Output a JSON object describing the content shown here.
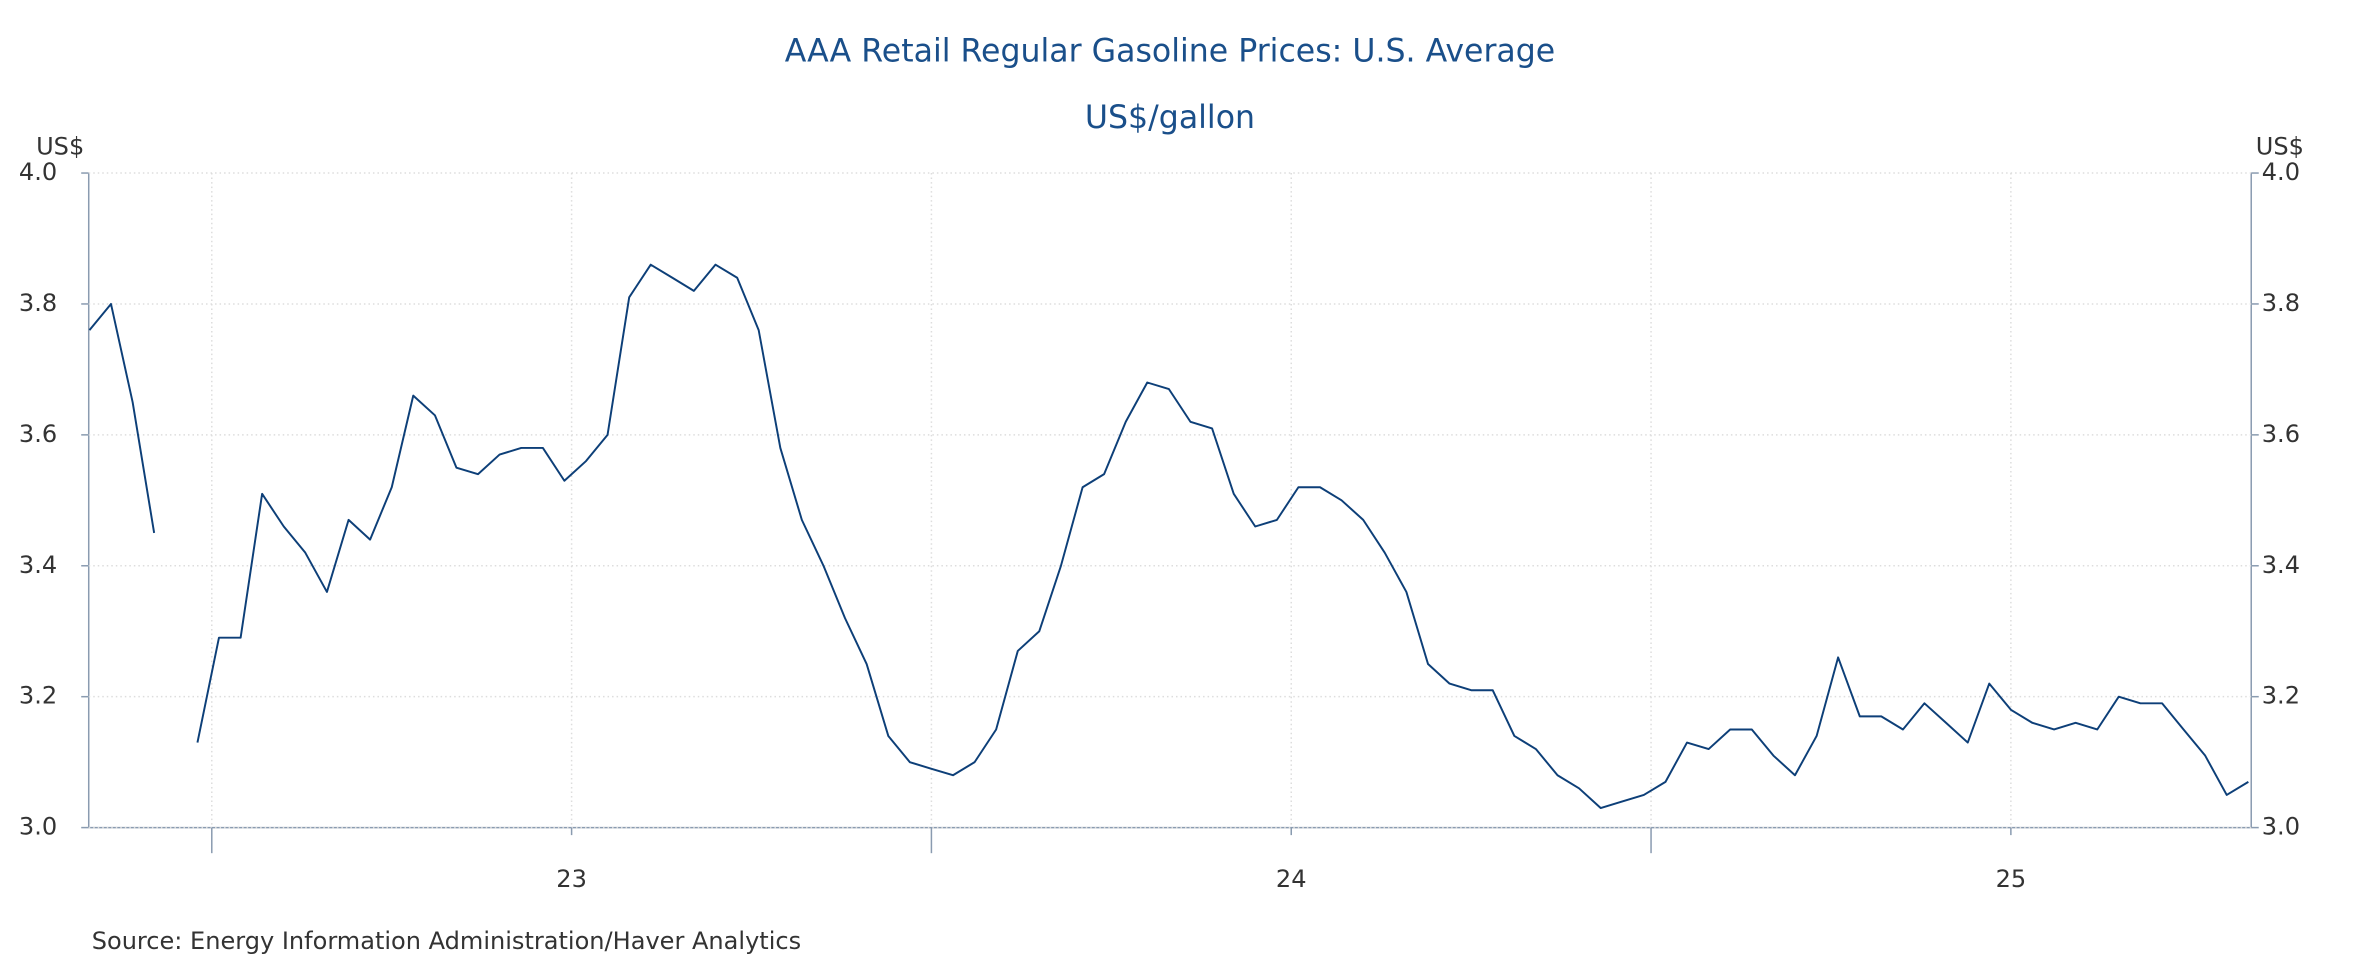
{
  "chart_data": {
    "type": "line",
    "title": "AAA Retail Regular Gasoline Prices: U.S. Average",
    "subtitle": "US$/gallon",
    "ylabel": "US$",
    "y2label": "US$",
    "source": "Source:  Energy Information Administration/Haver Analytics",
    "xlim": [
      2022.829,
      2025.834
    ],
    "xticks": [
      {
        "value": 2023.5,
        "label": "23"
      },
      {
        "value": 2024.5,
        "label": "24"
      },
      {
        "value": 2025.5,
        "label": "25"
      }
    ],
    "xmajor": [
      2023,
      2024,
      2025
    ],
    "ylim": [
      3.0,
      4.0
    ],
    "yticks": [
      {
        "value": 3.0,
        "label": "3.0"
      },
      3.2,
      3.4,
      3.6,
      3.8,
      {
        "value": 4.0,
        "label": "4.0"
      }
    ],
    "y2lim": [
      3.0,
      4.0
    ],
    "y2ticks": [
      {
        "value": 3.0,
        "label": "3.0"
      },
      3.2,
      3.4,
      3.6,
      3.8,
      {
        "value": 4.0,
        "label": "4.0"
      }
    ],
    "grid": true,
    "x": [
      2022.83,
      2022.86,
      2022.89,
      2022.92,
      2022.95,
      2022.98,
      2023.01,
      2023.04,
      2023.07,
      2023.1,
      2023.13,
      2023.16,
      2023.19,
      2023.22,
      2023.25,
      2023.28,
      2023.31,
      2023.34,
      2023.37,
      2023.4,
      2023.43,
      2023.46,
      2023.49,
      2023.52,
      2023.55,
      2023.58,
      2023.61,
      2023.64,
      2023.67,
      2023.7,
      2023.73,
      2023.76,
      2023.79,
      2023.82,
      2023.85,
      2023.88,
      2023.91,
      2023.94,
      2023.97,
      2024.0,
      2024.03,
      2024.06,
      2024.09,
      2024.12,
      2024.15,
      2024.18,
      2024.21,
      2024.24,
      2024.27,
      2024.3,
      2024.33,
      2024.36,
      2024.39,
      2024.42,
      2024.45,
      2024.48,
      2024.51,
      2024.54,
      2024.57,
      2024.6,
      2024.63,
      2024.66,
      2024.69,
      2024.72,
      2024.75,
      2024.78,
      2024.81,
      2024.84,
      2024.87,
      2024.9,
      2024.93,
      2024.96,
      2024.99,
      2025.02,
      2025.05,
      2025.08,
      2025.11,
      2025.14,
      2025.17,
      2025.2,
      2025.23,
      2025.26,
      2025.29,
      2025.32,
      2025.35,
      2025.38,
      2025.41,
      2025.44,
      2025.47,
      2025.5,
      2025.53,
      2025.56,
      2025.59,
      2025.62,
      2025.65,
      2025.68,
      2025.71,
      2025.74,
      2025.77,
      2025.8,
      2025.83
    ],
    "series": [
      {
        "color": "#0d3f78",
        "values": [
          3.76,
          3.8,
          3.65,
          3.45,
          null,
          3.13,
          3.29,
          3.29,
          3.51,
          3.46,
          3.42,
          3.36,
          3.47,
          3.44,
          3.52,
          3.66,
          3.63,
          3.55,
          3.54,
          3.57,
          3.58,
          3.58,
          3.53,
          3.56,
          3.6,
          3.81,
          3.86,
          3.84,
          3.82,
          3.86,
          3.84,
          3.76,
          3.58,
          3.47,
          3.4,
          3.32,
          3.25,
          3.14,
          3.1,
          3.09,
          3.08,
          3.1,
          3.15,
          3.27,
          3.3,
          3.4,
          3.52,
          3.54,
          3.62,
          3.68,
          3.67,
          3.62,
          3.61,
          3.51,
          3.46,
          3.47,
          3.52,
          3.52,
          3.5,
          3.47,
          3.42,
          3.36,
          3.25,
          3.22,
          3.21,
          3.21,
          3.14,
          3.12,
          3.08,
          3.06,
          3.03,
          3.04,
          3.05,
          3.07,
          3.13,
          3.12,
          3.15,
          3.15,
          3.11,
          3.08,
          3.14,
          3.26,
          3.17,
          3.17,
          3.15,
          3.19,
          3.16,
          3.13,
          3.22,
          3.18,
          3.16,
          3.15,
          3.16,
          3.15,
          3.2,
          3.19,
          3.19,
          3.15,
          3.11,
          3.05,
          3.07
        ]
      }
    ]
  }
}
